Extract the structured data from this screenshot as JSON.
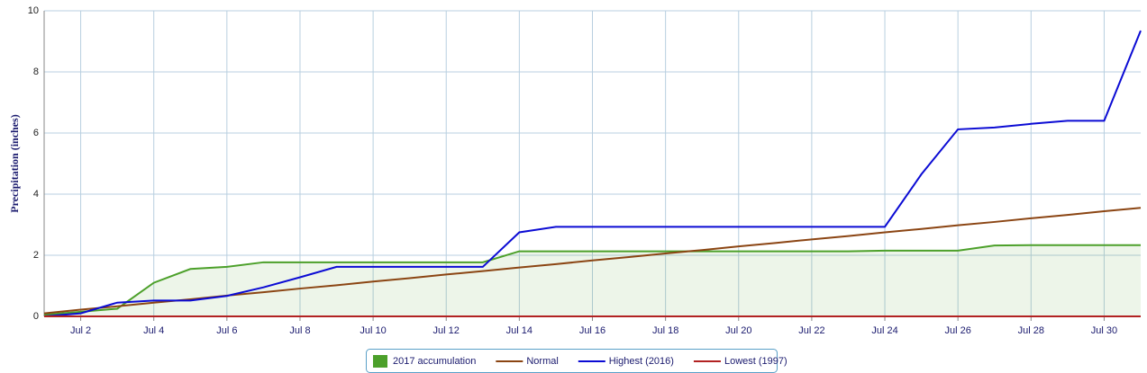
{
  "chart_data": {
    "type": "line",
    "y_label": "Precipitation (inches)",
    "categories": [
      null,
      "Jul 2",
      null,
      "Jul 4",
      null,
      "Jul 6",
      null,
      "Jul 8",
      null,
      "Jul 10",
      null,
      "Jul 12",
      null,
      "Jul 14",
      null,
      "Jul 16",
      null,
      "Jul 18",
      null,
      "Jul 20",
      null,
      "Jul 22",
      null,
      "Jul 24",
      null,
      "Jul 26",
      null,
      "Jul 28",
      null,
      "Jul 30",
      null
    ],
    "series": [
      {
        "name": "2017 accumulation",
        "color": "#4ca02a",
        "area": true,
        "values": [
          0.05,
          0.15,
          0.25,
          1.1,
          1.55,
          1.62,
          1.77,
          1.77,
          1.77,
          1.77,
          1.77,
          1.77,
          1.77,
          2.13,
          2.13,
          2.13,
          2.13,
          2.13,
          2.13,
          2.13,
          2.13,
          2.13,
          2.13,
          2.15,
          2.15,
          2.15,
          2.32,
          2.33,
          2.33,
          2.33,
          2.33
        ]
      },
      {
        "name": "Normal",
        "color": "#8b4513",
        "values": [
          0.1,
          0.22,
          0.33,
          0.45,
          0.56,
          0.68,
          0.79,
          0.91,
          1.02,
          1.14,
          1.25,
          1.37,
          1.48,
          1.6,
          1.71,
          1.83,
          1.94,
          2.06,
          2.17,
          2.29,
          2.4,
          2.52,
          2.63,
          2.75,
          2.86,
          2.98,
          3.09,
          3.21,
          3.32,
          3.44,
          3.55
        ]
      },
      {
        "name": "Highest (2016)",
        "color": "#0b0bd4",
        "values": [
          0,
          0.1,
          0.45,
          0.52,
          0.52,
          0.67,
          0.95,
          1.28,
          1.62,
          1.62,
          1.62,
          1.62,
          1.62,
          2.75,
          2.93,
          2.93,
          2.93,
          2.93,
          2.93,
          2.93,
          2.93,
          2.93,
          2.93,
          2.93,
          4.65,
          6.12,
          6.18,
          6.3,
          6.4,
          6.4,
          9.35
        ]
      },
      {
        "name": "Lowest (1997)",
        "color": "#b22222",
        "values": [
          0,
          0,
          0,
          0,
          0,
          0,
          0,
          0,
          0,
          0,
          0,
          0,
          0,
          0,
          0,
          0,
          0,
          0,
          0,
          0,
          0,
          0,
          0,
          0,
          0,
          0,
          0,
          0,
          0,
          0,
          0
        ]
      }
    ],
    "ylim": [
      0,
      10
    ],
    "yticks": [
      0,
      2,
      4,
      6,
      8,
      10
    ],
    "grid": true,
    "legend": "bottom"
  }
}
